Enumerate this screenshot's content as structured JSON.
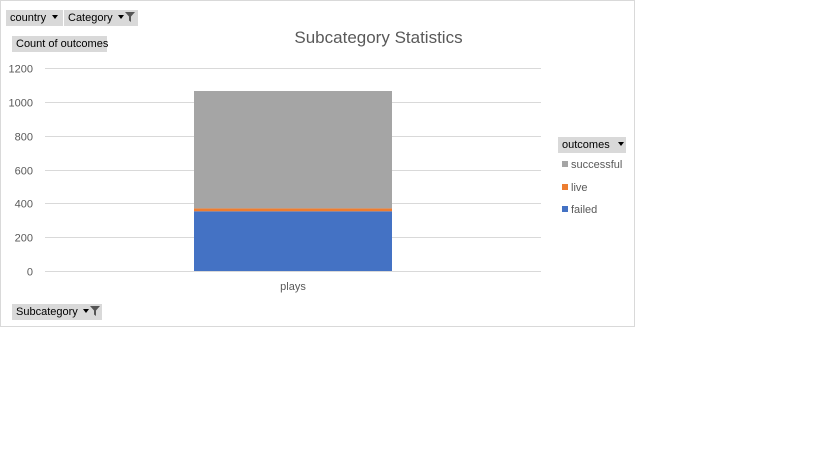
{
  "filters": {
    "country": {
      "label": "country"
    },
    "category": {
      "label": "Category"
    },
    "value_field": {
      "label": "Count of outcomes"
    },
    "axis_field": {
      "label": "Subcategory"
    },
    "legend_field": {
      "label": "outcomes"
    }
  },
  "colors": {
    "successful": "#a5a5a5",
    "live": "#ed7d31",
    "failed": "#4472c4",
    "gridline": "#d9d9d9",
    "field_button": "#d9d9d9"
  },
  "chart_data": {
    "type": "bar",
    "stacked": true,
    "title": "Subcategory Statistics",
    "categories": [
      "plays"
    ],
    "series": [
      {
        "name": "failed",
        "values": [
          353
        ]
      },
      {
        "name": "live",
        "values": [
          17
        ]
      },
      {
        "name": "successful",
        "values": [
          694
        ]
      }
    ],
    "legend_order": [
      "successful",
      "live",
      "failed"
    ],
    "ylim": [
      0,
      1200
    ],
    "yticks": [
      "0",
      "200",
      "400",
      "600",
      "800",
      "1000",
      "1200"
    ],
    "grid": true,
    "legend_position": "right"
  }
}
